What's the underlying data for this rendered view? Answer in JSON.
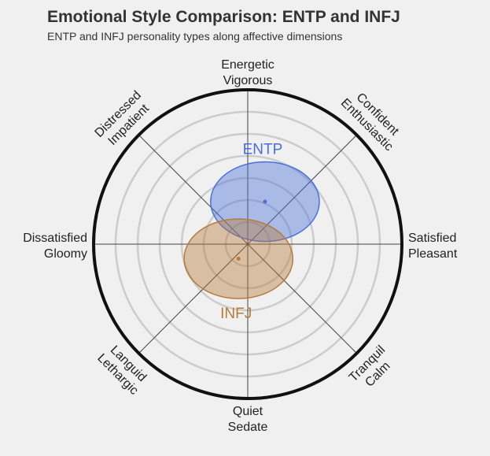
{
  "title": "Emotional Style Comparison: ENTP and INFJ",
  "subtitle": "ENTP and INFJ personality types along affective dimensions",
  "chart_data": {
    "type": "scatter",
    "title": "Emotional Style Comparison: ENTP and INFJ",
    "subtitle": "ENTP and INFJ personality types along affective dimensions",
    "axes": [
      {
        "direction": "top",
        "lines": [
          "Energetic",
          "Vigorous"
        ]
      },
      {
        "direction": "top-right",
        "lines": [
          "Confident",
          "Enthusiastic"
        ]
      },
      {
        "direction": "right",
        "lines": [
          "Satisfied",
          "Pleasant"
        ]
      },
      {
        "direction": "bottom-right",
        "lines": [
          "Tranquil",
          "Calm"
        ]
      },
      {
        "direction": "bottom",
        "lines": [
          "Quiet",
          "Sedate"
        ]
      },
      {
        "direction": "bottom-left",
        "lines": [
          "Languid",
          "Lethargic"
        ]
      },
      {
        "direction": "left",
        "lines": [
          "Dissatisfied",
          "Gloomy"
        ]
      },
      {
        "direction": "top-left",
        "lines": [
          "Distressed",
          "Impatient"
        ]
      }
    ],
    "range": [
      -1,
      1
    ],
    "grid": true,
    "rings": 6,
    "series": [
      {
        "name": "ENTP",
        "x": 0.13,
        "y": 0.32,
        "spread_x": 0.41,
        "spread_y": 0.3,
        "color": "#4a6fdc",
        "label_position": "above"
      },
      {
        "name": "INFJ",
        "x": -0.07,
        "y": -0.11,
        "spread_x": 0.41,
        "spread_y": 0.3,
        "color": "#b77a3a",
        "label_position": "below"
      }
    ]
  }
}
